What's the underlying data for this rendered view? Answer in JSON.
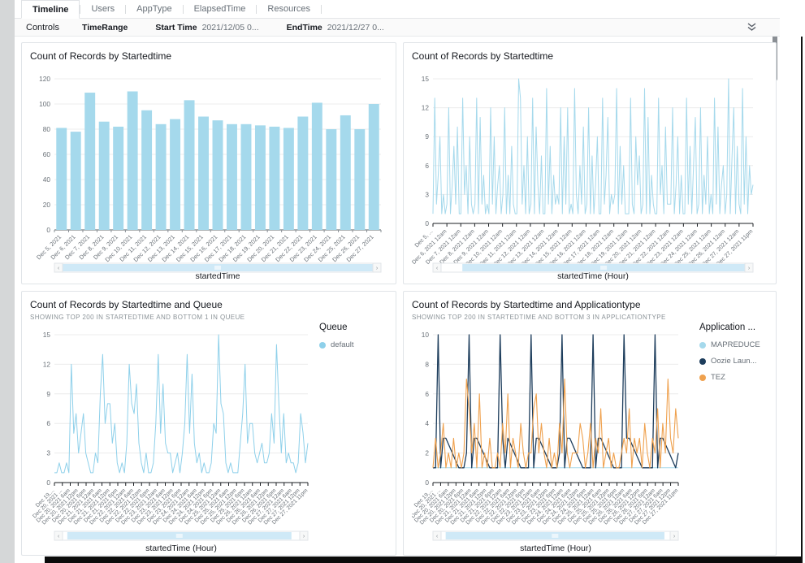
{
  "page": {
    "tabs": [
      {
        "label": "Timeline",
        "active": true
      },
      {
        "label": "Users",
        "active": false
      },
      {
        "label": "AppType",
        "active": false
      },
      {
        "label": "ElapsedTime",
        "active": false
      },
      {
        "label": "Resources",
        "active": false
      }
    ],
    "controls": {
      "label": "Controls",
      "fields": [
        {
          "label": "TimeRange",
          "value": ""
        },
        {
          "label": "Start Time",
          "value": "2021/12/05 0..."
        },
        {
          "label": "EndTime",
          "value": "2021/12/27 0..."
        }
      ],
      "collapse_icon": "double-chevron-down"
    },
    "colors": {
      "light_blue": "#a5d9ec",
      "navy": "#1d3d5c",
      "orange": "#efa14e",
      "brush_blue": "#cfe9f7",
      "grid": "#ececec",
      "axis_text": "#697077",
      "title_text": "#16191f"
    }
  },
  "chart_data": [
    {
      "type": "bar",
      "title": "Count of Records by Startedtime",
      "xlabel": "startedTime",
      "ylim": [
        0,
        120
      ],
      "yticks": [
        0,
        20,
        40,
        60,
        80,
        100,
        120
      ],
      "categories": [
        "Dec 5, 2021",
        "Dec 6, 2021",
        "Dec 7, 2021",
        "Dec 8, 2021",
        "Dec 9, 2021",
        "Dec 10, 2021",
        "Dec 11, 2021",
        "Dec 12, 2021",
        "Dec 13, 2021",
        "Dec 14, 2021",
        "Dec 15, 2021",
        "Dec 16, 2021",
        "Dec 17, 2021",
        "Dec 18, 2021",
        "Dec 19, 2021",
        "Dec 20, 2021",
        "Dec 21, 2021",
        "Dec 22, 2021",
        "Dec 23, 2021",
        "Dec 24, 2021",
        "Dec 25, 2021",
        "Dec 26, 2021",
        "Dec 27, 2021"
      ],
      "values": [
        81,
        78,
        109,
        86,
        82,
        110,
        95,
        84,
        88,
        103,
        90,
        87,
        84,
        84,
        83,
        82,
        81,
        90,
        101,
        80,
        91,
        80,
        100
      ],
      "color": "#a5d9ec",
      "brush": {
        "start": 0.0,
        "end": 1.0
      }
    },
    {
      "type": "line",
      "title": "Count of Records by Startedtime",
      "xlabel": "startedTime (Hour)",
      "ylim": [
        0,
        15
      ],
      "yticks": [
        0,
        3,
        6,
        9,
        12,
        15
      ],
      "x_tick_labels": [
        "Dec 5, ...",
        "Dec 6, 2021 12am",
        "Dec 7, 2021 12am",
        "Dec 8, 2021 12am",
        "Dec 9, 2021 12am",
        "Dec 10, 2021 12am",
        "Dec 11, 2021 12am",
        "Dec 12, 2021 12am",
        "Dec 13, 2021 12am",
        "Dec 14, 2021 12am",
        "Dec 15, 2021 12am",
        "Dec 16, 2021 12am",
        "Dec 17, 2021 12am",
        "Dec 18, 2021 12am",
        "Dec 19, 2021 12am",
        "Dec 20, 2021 12am",
        "Dec 21, 2021 12am",
        "Dec 22, 2021 12am",
        "Dec 23, 2021 12am",
        "Dec 24, 2021 12am",
        "Dec 25, 2021 12am",
        "Dec 26, 2021 12am",
        "Dec 27, 2021 12am",
        "Dec 27, 2021 11pm"
      ],
      "series": [
        {
          "name": "count",
          "color": "#a5d9ec",
          "width": 1,
          "values": [
            [
              1,
              13,
              2,
              5,
              9,
              1,
              3,
              1
            ],
            [
              2,
              12,
              1,
              4,
              8,
              2,
              10,
              1
            ],
            [
              1,
              13,
              3,
              6,
              1,
              9,
              2,
              1
            ],
            [
              2,
              13,
              1,
              11,
              2,
              5,
              1,
              2
            ],
            [
              1,
              12,
              2,
              9,
              1,
              4,
              6,
              1
            ],
            [
              3,
              12,
              1,
              5,
              1,
              8,
              2,
              1
            ],
            [
              1,
              15,
              13,
              2,
              6,
              1,
              9,
              1
            ],
            [
              2,
              13,
              1,
              10,
              4,
              1,
              7,
              1
            ],
            [
              1,
              14,
              2,
              8,
              1,
              5,
              2,
              3
            ],
            [
              2,
              12,
              1,
              9,
              2,
              12,
              1,
              2
            ],
            [
              1,
              14,
              3,
              1,
              6,
              2,
              10,
              1
            ],
            [
              2,
              12,
              1,
              7,
              1,
              4,
              9,
              1
            ],
            [
              1,
              13,
              2,
              5,
              11,
              1,
              3,
              2
            ],
            [
              3,
              14,
              1,
              8,
              2,
              6,
              1,
              1
            ],
            [
              1,
              13,
              2,
              1,
              9,
              4,
              7,
              1
            ],
            [
              2,
              14,
              1,
              11,
              1,
              5,
              2,
              1
            ],
            [
              1,
              13,
              3,
              6,
              1,
              10,
              2,
              2
            ],
            [
              2,
              12,
              1,
              4,
              9,
              1,
              5,
              1
            ],
            [
              1,
              13,
              2,
              8,
              1,
              6,
              11,
              1
            ],
            [
              2,
              12,
              1,
              5,
              2,
              9,
              1,
              3
            ],
            [
              1,
              13,
              2,
              10,
              1,
              4,
              6,
              1
            ],
            [
              3,
              15,
              1,
              7,
              12,
              1,
              8,
              2
            ],
            [
              1,
              14,
              2,
              9,
              1,
              6,
              3,
              4
            ]
          ]
        }
      ],
      "brush": {
        "start": 0.07,
        "end": 1.0
      }
    },
    {
      "type": "line",
      "title": "Count of Records by Startedtime and Queue",
      "subtitle": "SHOWING TOP 200 IN STARTEDTIME AND BOTTOM 1 IN QUEUE",
      "xlabel": "startedTime (Hour)",
      "ylim": [
        0,
        15
      ],
      "yticks": [
        0,
        3,
        6,
        9,
        12,
        15
      ],
      "x_tick_labels": [
        "Dec 19,...",
        "Dec 20, 2021 ...",
        "Dec 20, 2021 6am",
        "Dec 20, 2021 12pm",
        "Dec 20, 2021 6pm",
        "Dec 21, 2021 12am",
        "Dec 21, 2021 6am",
        "Dec 21, 2021 12pm",
        "Dec 21, 2021 6pm",
        "Dec 22, 2021 12am",
        "Dec 22, 2021 6am",
        "Dec 22, 2021 12pm",
        "Dec 22, 2021 6pm",
        "Dec 23, 2021 12am",
        "Dec 23, 2021 6am",
        "Dec 23, 2021 12pm",
        "Dec 23, 2021 6pm",
        "Dec 24, 2021 12am",
        "Dec 24, 2021 6am",
        "Dec 24, 2021 12pm",
        "Dec 24, 2021 6pm",
        "Dec 25, 2021 12am",
        "Dec 25, 2021 6am",
        "Dec 25, 2021 12pm",
        "Dec 25, 2021 6pm",
        "Dec 26, 2021 12am",
        "Dec 26, 2021 6am",
        "Dec 26, 2021 12pm",
        "Dec 26, 2021 6pm",
        "Dec 27, 2021 12am",
        "Dec 27, 2021 6am",
        "Dec 27, 2021 12pm",
        "Dec 27, 2021 11pm"
      ],
      "legend": {
        "title": "Queue",
        "items": [
          {
            "label": "default",
            "color": "#8ed0ea"
          }
        ]
      },
      "series": [
        {
          "name": "default",
          "color": "#8ed0ea",
          "width": 1,
          "values": [
            [
              1,
              1,
              2,
              1
            ],
            [
              1,
              2,
              1,
              12,
              5,
              7,
              3,
              5,
              7,
              3,
              2,
              1
            ],
            [
              1,
              3,
              2,
              9,
              13,
              6,
              8,
              8,
              4,
              6,
              2,
              1
            ],
            [
              2,
              1,
              4,
              12,
              8,
              7,
              10,
              4,
              2,
              1,
              3,
              1
            ],
            [
              1,
              2,
              6,
              13,
              5,
              10,
              4,
              3,
              3,
              1,
              2,
              3
            ],
            [
              1,
              3,
              6,
              13,
              5,
              11,
              4,
              2,
              3,
              1,
              2,
              1
            ],
            [
              1,
              2,
              6,
              5,
              15,
              8,
              7,
              2,
              1,
              2,
              1,
              1
            ],
            [
              1,
              4,
              7,
              12,
              4,
              6,
              6,
              3,
              2,
              3,
              4,
              2
            ],
            [
              2,
              3,
              7,
              4,
              14,
              8,
              3,
              7,
              2,
              3,
              2,
              2
            ],
            [
              1,
              2,
              7,
              5,
              2,
              4
            ]
          ]
        }
      ],
      "brush": {
        "start": 0.02,
        "end": 0.965
      }
    },
    {
      "type": "line",
      "title": "Count of Records by Startedtime and Applicationtype",
      "subtitle": "SHOWING TOP 200 IN STARTEDTIME AND BOTTOM 3 IN APPLICATIONTYPE",
      "xlabel": "startedTime (Hour)",
      "ylim": [
        0,
        10
      ],
      "yticks": [
        0,
        2,
        4,
        6,
        8,
        10
      ],
      "x_tick_labels": [
        "Dec 19,...",
        "Dec 20, 2021 ...",
        "Dec 20, 2021 6am",
        "Dec 20, 2021 12pm",
        "Dec 20, 2021 6pm",
        "Dec 21, 2021 12am",
        "Dec 21, 2021 6am",
        "Dec 21, 2021 12pm",
        "Dec 21, 2021 6pm",
        "Dec 22, 2021 12am",
        "Dec 22, 2021 6am",
        "Dec 22, 2021 12pm",
        "Dec 22, 2021 6pm",
        "Dec 23, 2021 12am",
        "Dec 23, 2021 6am",
        "Dec 23, 2021 12pm",
        "Dec 23, 2021 6pm",
        "Dec 24, 2021 12am",
        "Dec 24, 2021 6am",
        "Dec 24, 2021 12pm",
        "Dec 24, 2021 6pm",
        "Dec 25, 2021 12am",
        "Dec 25, 2021 6am",
        "Dec 25, 2021 12pm",
        "Dec 25, 2021 6pm",
        "Dec 26, 2021 12am",
        "Dec 26, 2021 6am",
        "Dec 26, 2021 12pm",
        "Dec 26, 2021 6pm",
        "Dec 27, 2021 12am",
        "Dec 27, 2021 6am",
        "Dec 27, 2021 12pm",
        "Dec 27, 2021 11pm"
      ],
      "legend": {
        "title": "Application ...",
        "items": [
          {
            "label": "MAPREDUCE",
            "color": "#a5d9ec"
          },
          {
            "label": "Oozie Laun...",
            "color": "#1d3d5c"
          },
          {
            "label": "TEZ",
            "color": "#efa14e"
          }
        ]
      },
      "series": [
        {
          "name": "MAPREDUCE",
          "color": "#a5d9ec",
          "width": 1,
          "values": [
            [
              1,
              1,
              1,
              1,
              1,
              1,
              1,
              1,
              1,
              1,
              1,
              1
            ],
            [
              1,
              1,
              1,
              1,
              1,
              1,
              1,
              1,
              1,
              1,
              1,
              1
            ],
            [
              1,
              1,
              1,
              1,
              1,
              1,
              1,
              1,
              1,
              1,
              1,
              1
            ],
            [
              1,
              1,
              1,
              1,
              1,
              1,
              1,
              1,
              1,
              1,
              1,
              1
            ],
            [
              1,
              1,
              1,
              1,
              1,
              1,
              1,
              1,
              1,
              1,
              1,
              1
            ],
            [
              1,
              1,
              1,
              1,
              1,
              1,
              1,
              1,
              1,
              1,
              1,
              1
            ],
            [
              1,
              1,
              1,
              1,
              1,
              1,
              1,
              1,
              1,
              1,
              1,
              1
            ],
            [
              1,
              1,
              1,
              1,
              1,
              1,
              1,
              1,
              1,
              1,
              1,
              1
            ]
          ]
        },
        {
          "name": "Oozie Laun...",
          "color": "#1d3d5c",
          "width": 1.3,
          "values": [
            [
              1,
              1,
              10,
              1,
              3,
              3,
              2.6,
              2.2,
              1.8,
              1.4,
              1,
              1
            ],
            [
              1,
              2,
              10,
              1,
              3,
              3,
              2.6,
              2.2,
              1.8,
              1.4,
              1,
              1
            ],
            [
              1,
              1,
              10,
              3,
              1,
              3,
              2.6,
              2.2,
              1.8,
              1.4,
              1,
              1
            ],
            [
              1,
              1,
              10,
              1,
              3,
              3,
              2.6,
              2.2,
              1.8,
              1.4,
              1,
              1
            ],
            [
              1,
              2,
              10,
              1,
              3,
              3,
              2.6,
              2.2,
              1.8,
              1.4,
              1,
              1
            ],
            [
              1,
              1,
              10,
              1,
              3,
              3,
              2.6,
              2.2,
              1.8,
              1.4,
              1,
              1
            ],
            [
              1,
              1,
              10,
              3,
              3,
              2.6,
              2.2,
              1.8,
              1.4,
              1,
              1,
              1
            ],
            [
              1,
              1,
              10,
              1,
              3,
              3,
              2.6,
              2.2,
              1.8,
              1.4,
              1,
              2
            ]
          ]
        },
        {
          "name": "TEZ",
          "color": "#efa14e",
          "width": 1.1,
          "values": [
            [
              1,
              3,
              1,
              2,
              4,
              1,
              2,
              1,
              3,
              1,
              2,
              1
            ],
            [
              2,
              7,
              5,
              2,
              4,
              1,
              6,
              1,
              2,
              1,
              3,
              1
            ],
            [
              1,
              2,
              1,
              4,
              2,
              6,
              1,
              3,
              2,
              1,
              4,
              2
            ],
            [
              1,
              2,
              2,
              5,
              6,
              2,
              4,
              2,
              1,
              3,
              1,
              2
            ],
            [
              1,
              4,
              2,
              7,
              2,
              1,
              2,
              2,
              2,
              4,
              3,
              1
            ],
            [
              2,
              4,
              1,
              3,
              2,
              5,
              1,
              2,
              3,
              1,
              2,
              1
            ],
            [
              1,
              2,
              3,
              2,
              5,
              1,
              3,
              2,
              3,
              1,
              4,
              2
            ],
            [
              1,
              3,
              2,
              5,
              1,
              4,
              2,
              7,
              3,
              2,
              5,
              3
            ]
          ]
        }
      ],
      "brush": {
        "start": 0.02,
        "end": 0.975
      }
    }
  ]
}
